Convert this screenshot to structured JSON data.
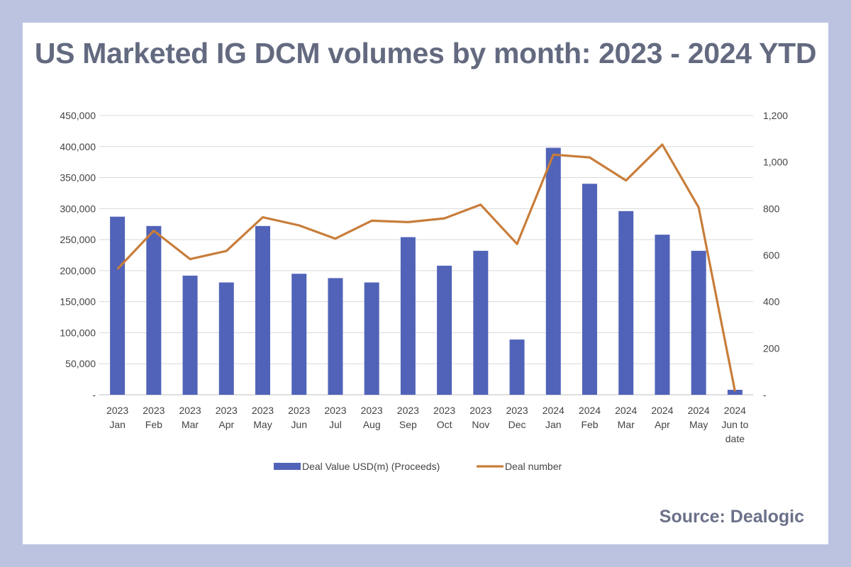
{
  "title": "US Marketed IG DCM volumes by month: 2023 - 2024 YTD",
  "source": "Source: Dealogic",
  "chart_data": {
    "type": "bar",
    "categories": [
      [
        "2023",
        "Jan"
      ],
      [
        "2023",
        "Feb"
      ],
      [
        "2023",
        "Mar"
      ],
      [
        "2023",
        "Apr"
      ],
      [
        "2023",
        "May"
      ],
      [
        "2023",
        "Jun"
      ],
      [
        "2023",
        "Jul"
      ],
      [
        "2023",
        "Aug"
      ],
      [
        "2023",
        "Sep"
      ],
      [
        "2023",
        "Oct"
      ],
      [
        "2023",
        "Nov"
      ],
      [
        "2023",
        "Dec"
      ],
      [
        "2024",
        "Jan"
      ],
      [
        "2024",
        "Feb"
      ],
      [
        "2024",
        "Mar"
      ],
      [
        "2024",
        "Apr"
      ],
      [
        "2024",
        "May"
      ],
      [
        "2024",
        "Jun to",
        "date"
      ]
    ],
    "series": [
      {
        "name": "Deal Value USD(m) (Proceeds)",
        "type": "bar",
        "axis": "left",
        "color": "#5163b8",
        "values": [
          287000,
          272000,
          192000,
          181000,
          272000,
          195000,
          188000,
          181000,
          254000,
          208000,
          232000,
          89000,
          398000,
          340000,
          296000,
          258000,
          232000,
          8000
        ]
      },
      {
        "name": "Deal number",
        "type": "line",
        "axis": "right",
        "color": "#c87d3a",
        "values": [
          540,
          705,
          583,
          618,
          763,
          728,
          671,
          748,
          742,
          758,
          817,
          648,
          1032,
          1020,
          921,
          1075,
          805,
          15
        ]
      }
    ],
    "y_left": {
      "min": 0,
      "max": 450000,
      "ticks": [
        0,
        50000,
        100000,
        150000,
        200000,
        250000,
        300000,
        350000,
        400000,
        450000
      ],
      "tick_labels": [
        "-",
        "50,000",
        "100,000",
        "150,000",
        "200,000",
        "250,000",
        "300,000",
        "350,000",
        "400,000",
        "450,000"
      ]
    },
    "y_right": {
      "min": 0,
      "max": 1200,
      "ticks": [
        0,
        200,
        400,
        600,
        800,
        1000,
        1200
      ],
      "tick_labels": [
        "-",
        "200",
        "400",
        "600",
        "800",
        "1,000",
        "1,200"
      ]
    },
    "grid": true,
    "legend_position": "bottom"
  }
}
